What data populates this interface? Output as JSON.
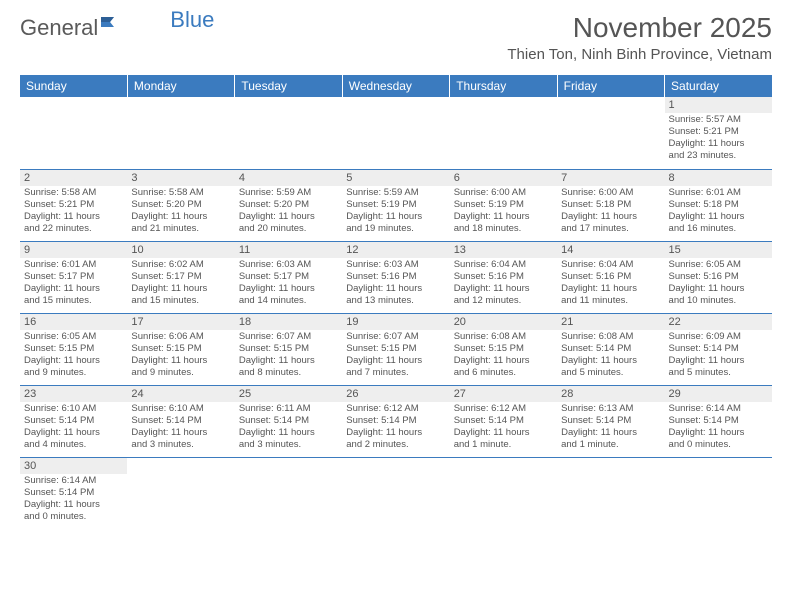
{
  "logo": {
    "text1": "General",
    "text2": "Blue"
  },
  "title": "November 2025",
  "location": "Thien Ton, Ninh Binh Province, Vietnam",
  "colors": {
    "header_bg": "#3b7bbf",
    "header_text": "#ffffff",
    "daynum_bg": "#eeeeee",
    "text": "#555555",
    "border": "#3b7bbf"
  },
  "weekdays": [
    "Sunday",
    "Monday",
    "Tuesday",
    "Wednesday",
    "Thursday",
    "Friday",
    "Saturday"
  ],
  "weeks": [
    [
      {
        "num": "",
        "lines": []
      },
      {
        "num": "",
        "lines": []
      },
      {
        "num": "",
        "lines": []
      },
      {
        "num": "",
        "lines": []
      },
      {
        "num": "",
        "lines": []
      },
      {
        "num": "",
        "lines": []
      },
      {
        "num": "1",
        "lines": [
          "Sunrise: 5:57 AM",
          "Sunset: 5:21 PM",
          "Daylight: 11 hours",
          "and 23 minutes."
        ]
      }
    ],
    [
      {
        "num": "2",
        "lines": [
          "Sunrise: 5:58 AM",
          "Sunset: 5:21 PM",
          "Daylight: 11 hours",
          "and 22 minutes."
        ]
      },
      {
        "num": "3",
        "lines": [
          "Sunrise: 5:58 AM",
          "Sunset: 5:20 PM",
          "Daylight: 11 hours",
          "and 21 minutes."
        ]
      },
      {
        "num": "4",
        "lines": [
          "Sunrise: 5:59 AM",
          "Sunset: 5:20 PM",
          "Daylight: 11 hours",
          "and 20 minutes."
        ]
      },
      {
        "num": "5",
        "lines": [
          "Sunrise: 5:59 AM",
          "Sunset: 5:19 PM",
          "Daylight: 11 hours",
          "and 19 minutes."
        ]
      },
      {
        "num": "6",
        "lines": [
          "Sunrise: 6:00 AM",
          "Sunset: 5:19 PM",
          "Daylight: 11 hours",
          "and 18 minutes."
        ]
      },
      {
        "num": "7",
        "lines": [
          "Sunrise: 6:00 AM",
          "Sunset: 5:18 PM",
          "Daylight: 11 hours",
          "and 17 minutes."
        ]
      },
      {
        "num": "8",
        "lines": [
          "Sunrise: 6:01 AM",
          "Sunset: 5:18 PM",
          "Daylight: 11 hours",
          "and 16 minutes."
        ]
      }
    ],
    [
      {
        "num": "9",
        "lines": [
          "Sunrise: 6:01 AM",
          "Sunset: 5:17 PM",
          "Daylight: 11 hours",
          "and 15 minutes."
        ]
      },
      {
        "num": "10",
        "lines": [
          "Sunrise: 6:02 AM",
          "Sunset: 5:17 PM",
          "Daylight: 11 hours",
          "and 15 minutes."
        ]
      },
      {
        "num": "11",
        "lines": [
          "Sunrise: 6:03 AM",
          "Sunset: 5:17 PM",
          "Daylight: 11 hours",
          "and 14 minutes."
        ]
      },
      {
        "num": "12",
        "lines": [
          "Sunrise: 6:03 AM",
          "Sunset: 5:16 PM",
          "Daylight: 11 hours",
          "and 13 minutes."
        ]
      },
      {
        "num": "13",
        "lines": [
          "Sunrise: 6:04 AM",
          "Sunset: 5:16 PM",
          "Daylight: 11 hours",
          "and 12 minutes."
        ]
      },
      {
        "num": "14",
        "lines": [
          "Sunrise: 6:04 AM",
          "Sunset: 5:16 PM",
          "Daylight: 11 hours",
          "and 11 minutes."
        ]
      },
      {
        "num": "15",
        "lines": [
          "Sunrise: 6:05 AM",
          "Sunset: 5:16 PM",
          "Daylight: 11 hours",
          "and 10 minutes."
        ]
      }
    ],
    [
      {
        "num": "16",
        "lines": [
          "Sunrise: 6:05 AM",
          "Sunset: 5:15 PM",
          "Daylight: 11 hours",
          "and 9 minutes."
        ]
      },
      {
        "num": "17",
        "lines": [
          "Sunrise: 6:06 AM",
          "Sunset: 5:15 PM",
          "Daylight: 11 hours",
          "and 9 minutes."
        ]
      },
      {
        "num": "18",
        "lines": [
          "Sunrise: 6:07 AM",
          "Sunset: 5:15 PM",
          "Daylight: 11 hours",
          "and 8 minutes."
        ]
      },
      {
        "num": "19",
        "lines": [
          "Sunrise: 6:07 AM",
          "Sunset: 5:15 PM",
          "Daylight: 11 hours",
          "and 7 minutes."
        ]
      },
      {
        "num": "20",
        "lines": [
          "Sunrise: 6:08 AM",
          "Sunset: 5:15 PM",
          "Daylight: 11 hours",
          "and 6 minutes."
        ]
      },
      {
        "num": "21",
        "lines": [
          "Sunrise: 6:08 AM",
          "Sunset: 5:14 PM",
          "Daylight: 11 hours",
          "and 5 minutes."
        ]
      },
      {
        "num": "22",
        "lines": [
          "Sunrise: 6:09 AM",
          "Sunset: 5:14 PM",
          "Daylight: 11 hours",
          "and 5 minutes."
        ]
      }
    ],
    [
      {
        "num": "23",
        "lines": [
          "Sunrise: 6:10 AM",
          "Sunset: 5:14 PM",
          "Daylight: 11 hours",
          "and 4 minutes."
        ]
      },
      {
        "num": "24",
        "lines": [
          "Sunrise: 6:10 AM",
          "Sunset: 5:14 PM",
          "Daylight: 11 hours",
          "and 3 minutes."
        ]
      },
      {
        "num": "25",
        "lines": [
          "Sunrise: 6:11 AM",
          "Sunset: 5:14 PM",
          "Daylight: 11 hours",
          "and 3 minutes."
        ]
      },
      {
        "num": "26",
        "lines": [
          "Sunrise: 6:12 AM",
          "Sunset: 5:14 PM",
          "Daylight: 11 hours",
          "and 2 minutes."
        ]
      },
      {
        "num": "27",
        "lines": [
          "Sunrise: 6:12 AM",
          "Sunset: 5:14 PM",
          "Daylight: 11 hours",
          "and 1 minute."
        ]
      },
      {
        "num": "28",
        "lines": [
          "Sunrise: 6:13 AM",
          "Sunset: 5:14 PM",
          "Daylight: 11 hours",
          "and 1 minute."
        ]
      },
      {
        "num": "29",
        "lines": [
          "Sunrise: 6:14 AM",
          "Sunset: 5:14 PM",
          "Daylight: 11 hours",
          "and 0 minutes."
        ]
      }
    ],
    [
      {
        "num": "30",
        "lines": [
          "Sunrise: 6:14 AM",
          "Sunset: 5:14 PM",
          "Daylight: 11 hours",
          "and 0 minutes."
        ]
      },
      {
        "num": "",
        "lines": []
      },
      {
        "num": "",
        "lines": []
      },
      {
        "num": "",
        "lines": []
      },
      {
        "num": "",
        "lines": []
      },
      {
        "num": "",
        "lines": []
      },
      {
        "num": "",
        "lines": []
      }
    ]
  ]
}
